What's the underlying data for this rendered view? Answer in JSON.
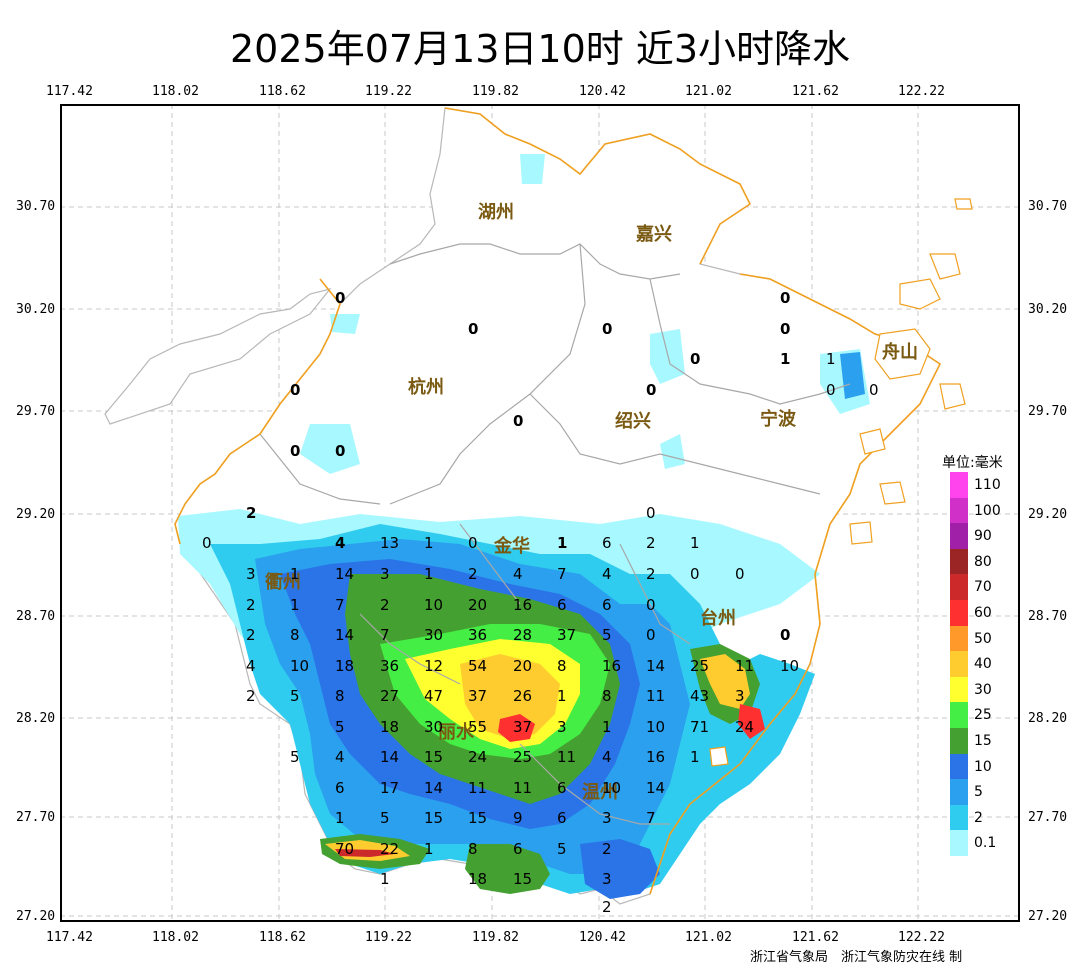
{
  "title": "2025年07月13日10时 近3小时降水",
  "x_ticks": [
    "117.42",
    "118.02",
    "118.62",
    "119.22",
    "119.82",
    "120.42",
    "121.02",
    "121.62",
    "122.22"
  ],
  "y_ticks": [
    "30.70",
    "30.20",
    "29.70",
    "29.20",
    "28.70",
    "28.20",
    "27.70",
    "27.20"
  ],
  "legend": {
    "title": "单位:毫米",
    "items": [
      {
        "label": "110",
        "color": "#ff44ee"
      },
      {
        "label": "100",
        "color": "#d030c8"
      },
      {
        "label": "90",
        "color": "#a020a8"
      },
      {
        "label": "80",
        "color": "#9b2424"
      },
      {
        "label": "70",
        "color": "#cc2a2a"
      },
      {
        "label": "60",
        "color": "#ff3030"
      },
      {
        "label": "50",
        "color": "#ff9a2a"
      },
      {
        "label": "40",
        "color": "#ffcc30"
      },
      {
        "label": "30",
        "color": "#ffff30"
      },
      {
        "label": "25",
        "color": "#44ee44"
      },
      {
        "label": "15",
        "color": "#44a030"
      },
      {
        "label": "10",
        "color": "#2a74e8"
      },
      {
        "label": "5",
        "color": "#2aa0ee"
      },
      {
        "label": "2",
        "color": "#30ccf0"
      },
      {
        "label": "0.1",
        "color": "#a8f8ff"
      }
    ]
  },
  "cities": [
    {
      "name": "湖州"
    },
    {
      "name": "嘉兴"
    },
    {
      "name": "杭州"
    },
    {
      "name": "绍兴"
    },
    {
      "name": "宁波"
    },
    {
      "name": "金华"
    },
    {
      "name": "衢州"
    },
    {
      "name": "台州"
    },
    {
      "name": "丽水"
    },
    {
      "name": "温州"
    },
    {
      "name": "舟山"
    }
  ],
  "station_values": [
    "0",
    "0",
    "0",
    "0",
    "0",
    "0",
    "0",
    "1",
    "1",
    "0",
    "0",
    "0",
    "0",
    "0",
    "0",
    "0",
    "2",
    "0",
    "4",
    "13",
    "1",
    "0",
    "1",
    "6",
    "2",
    "1",
    "3",
    "1",
    "14",
    "3",
    "1",
    "2",
    "4",
    "7",
    "4",
    "2",
    "0",
    "0",
    "2",
    "1",
    "7",
    "2",
    "10",
    "20",
    "16",
    "6",
    "6",
    "0",
    "2",
    "8",
    "14",
    "7",
    "30",
    "36",
    "28",
    "37",
    "5",
    "0",
    "0",
    "4",
    "10",
    "18",
    "36",
    "12",
    "54",
    "20",
    "8",
    "16",
    "14",
    "25",
    "11",
    "10",
    "2",
    "5",
    "8",
    "27",
    "47",
    "37",
    "26",
    "1",
    "8",
    "11",
    "43",
    "3",
    "5",
    "18",
    "30",
    "55",
    "37",
    "3",
    "1",
    "10",
    "71",
    "24",
    "5",
    "4",
    "14",
    "15",
    "24",
    "25",
    "11",
    "4",
    "16",
    "1",
    "6",
    "17",
    "14",
    "11",
    "11",
    "6",
    "10",
    "14",
    "1",
    "5",
    "15",
    "15",
    "9",
    "6",
    "3",
    "7",
    "70",
    "22",
    "1",
    "8",
    "6",
    "5",
    "2",
    "1",
    "18",
    "15",
    "3",
    "2"
  ],
  "credit": "浙江省气象局　浙江气象防灾在线 制"
}
